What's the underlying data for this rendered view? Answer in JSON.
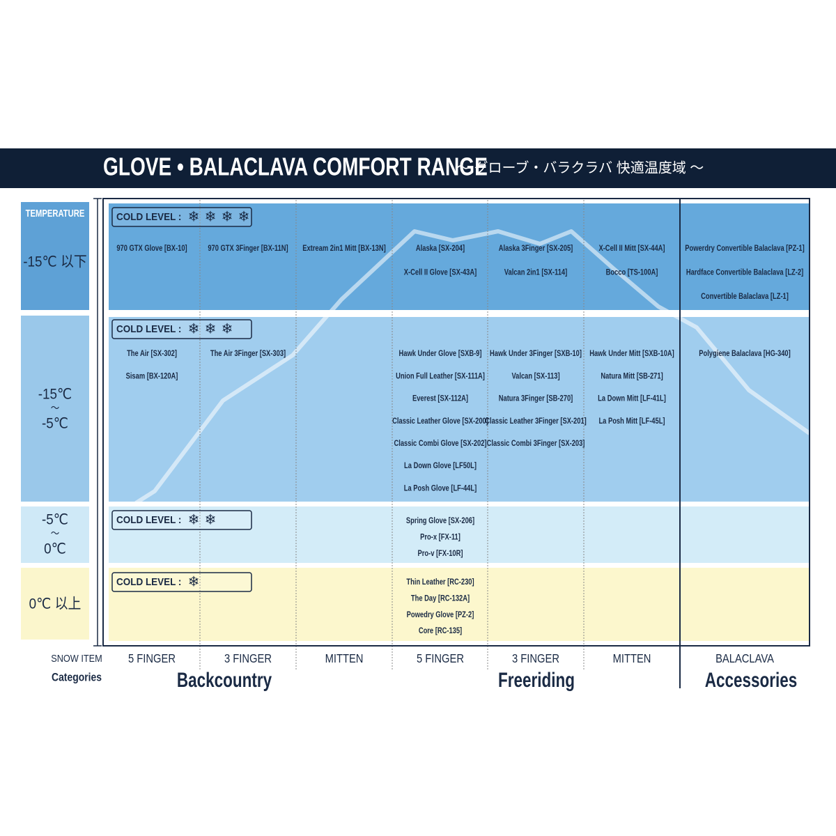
{
  "header": {
    "title": "GLOVE • BALACLAVA COMFORT RANGE",
    "subtitle": "～ グローブ・バラクラバ 快適温度域 ～"
  },
  "temperature_label": "TEMPERATURE",
  "cold_level_label": "COLD LEVEL :",
  "rows": [
    {
      "label": [
        "-15℃ 以下"
      ],
      "snowflakes": 4,
      "cells": [
        [
          "970 GTX Glove [BX-10]"
        ],
        [
          "970 GTX 3Finger [BX-11N]"
        ],
        [
          "Extream 2in1 Mitt [BX-13N]"
        ],
        [
          "Alaska [SX-204]",
          "X-Cell II Glove [SX-43A]"
        ],
        [
          "Alaska 3Finger [SX-205]",
          "Valcan 2in1 [SX-114]"
        ],
        [
          "X-Cell II Mitt [SX-44A]",
          "Bocco [TS-100A]"
        ],
        [
          "Powerdry Convertible Balaclava [PZ-1]",
          "Hardface Convertible Balaclava [LZ-2]",
          "Convertible Balaclava [LZ-1]"
        ]
      ]
    },
    {
      "label": [
        "-15℃",
        "～",
        "-5℃"
      ],
      "snowflakes": 3,
      "cells": [
        [
          "The Air [SX-302]",
          "Sisam [BX-120A]"
        ],
        [
          "The Air 3Finger [SX-303]"
        ],
        [],
        [
          "Hawk Under Glove [SXB-9]",
          "Union Full Leather [SX-111A]",
          "Everest [SX-112A]",
          "Classic Leather Glove [SX-200]",
          "Classic Combi Glove [SX-202]",
          "La Down Glove [LF50L]",
          "La Posh Glove [LF-44L]"
        ],
        [
          "Hawk Under 3Finger [SXB-10]",
          "Valcan [SX-113]",
          "Natura 3Finger [SB-270]",
          "Classic Leather 3Finger [SX-201]",
          "Classic Combi 3Finger [SX-203]"
        ],
        [
          "Hawk Under Mitt [SXB-10A]",
          "Natura Mitt [SB-271]",
          "La Down Mitt [LF-41L]",
          "La Posh Mitt [LF-45L]"
        ],
        [
          "Polygiene Balaclava [HG-340]"
        ]
      ]
    },
    {
      "label": [
        "-5℃",
        "～",
        "0℃"
      ],
      "snowflakes": 2,
      "cells": [
        [],
        [],
        [],
        [
          "Spring Glove [SX-206]",
          "Pro-x [FX-11]",
          "Pro-v [FX-10R]"
        ],
        [],
        [],
        []
      ]
    },
    {
      "label": [
        "0℃ 以上"
      ],
      "snowflakes": 1,
      "cells": [
        [],
        [],
        [],
        [
          "Thin Leather [RC-230]",
          "The Day [RC-132A]",
          "Powedry Glove [PZ-2]",
          "Core [RC-135]"
        ],
        [],
        [],
        []
      ]
    }
  ],
  "snow_item_label": "SNOW ITEM",
  "snow_items": [
    "5 FINGER",
    "3 FINGER",
    "MITTEN",
    "5 FINGER",
    "3 FINGER",
    "MITTEN",
    "BALACLAVA"
  ],
  "categories_label": "Categories",
  "categories": [
    "Backcountry",
    "Freeriding",
    "Accessories"
  ]
}
